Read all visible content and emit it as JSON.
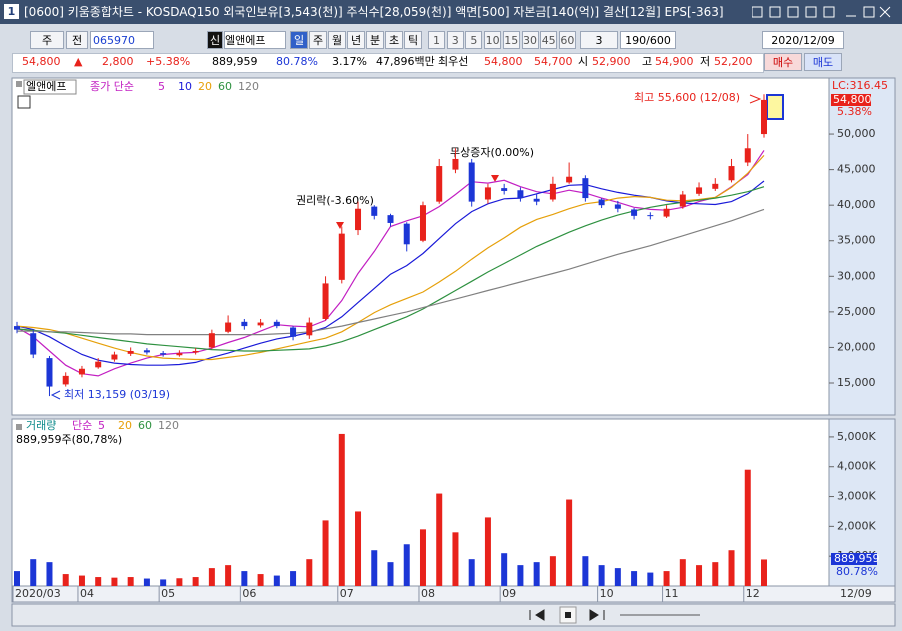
{
  "header": {
    "window_no": "1",
    "title": "[0600] 키움종합차트 - KOSDAQ150 외국인보유[3,543(천)] 주식수[28,059(천)] 액면[500] 자본금[140(억)] 결산[12월] EPS[-363]"
  },
  "toolbar": {
    "kind": "주",
    "scope": "전",
    "code": "065970",
    "credit": "신",
    "name": "엘앤에프",
    "periods": [
      "일",
      "주",
      "월",
      "년",
      "분",
      "초",
      "틱"
    ],
    "intervals": [
      "1",
      "3",
      "5",
      "10",
      "15",
      "30",
      "45",
      "60"
    ],
    "unit": "3",
    "count": "190/600",
    "date": "2020/12/09"
  },
  "info": {
    "price": "54,800",
    "arrow": "▲",
    "change": "2,800",
    "rate": "+5.38%",
    "volume": "889,959",
    "vol_rate": "80.78%",
    "turnover": "3.17%",
    "amount": "47,896백만",
    "best_label": "최우선",
    "ask": "54,800",
    "bid": "54,700",
    "open_label": "시",
    "open": "52,900",
    "high_label": "고",
    "high": "54,900",
    "low_label": "저",
    "low": "52,200",
    "buy": "매수",
    "sell": "매도"
  },
  "chart_data": [
    {
      "type": "candlestick",
      "legend_name": "엘앤에프",
      "ma_label": "종가 단순",
      "up_color": "#e8221b",
      "down_color": "#1c36d6",
      "categories": [
        "2020/03",
        null,
        null,
        null,
        "04",
        null,
        null,
        null,
        null,
        "05",
        null,
        null,
        null,
        null,
        "06",
        null,
        null,
        null,
        null,
        null,
        "07",
        null,
        null,
        null,
        null,
        "08",
        null,
        null,
        null,
        null,
        "09",
        null,
        null,
        null,
        null,
        null,
        "10",
        null,
        null,
        null,
        "11",
        null,
        null,
        null,
        null,
        "12",
        null
      ],
      "x_end_label": "12/09",
      "open": [
        23000,
        22000,
        18500,
        14800,
        16200,
        17200,
        18300,
        19100,
        19600,
        19200,
        18900,
        19300,
        20000,
        22200,
        23600,
        23100,
        23600,
        22800,
        21700,
        24000,
        29500,
        36500,
        39800,
        38600,
        37400,
        35000,
        40500,
        45000,
        46000,
        40800,
        42400,
        42100,
        40900,
        40800,
        43200,
        43800,
        40800,
        40100,
        39400,
        38600,
        38400,
        39800,
        41600,
        42300,
        43500,
        46000,
        50000
      ],
      "high": [
        23600,
        22400,
        18800,
        16500,
        17400,
        18500,
        19400,
        20000,
        19900,
        19500,
        19600,
        19900,
        22500,
        24500,
        24000,
        24000,
        23900,
        23000,
        24200,
        30000,
        37000,
        40500,
        40000,
        38800,
        37600,
        40500,
        46500,
        48000,
        46500,
        43000,
        43000,
        42500,
        41500,
        44000,
        46000,
        44200,
        41000,
        40600,
        39600,
        39000,
        40000,
        42000,
        43200,
        43800,
        46500,
        50000,
        55600
      ],
      "low": [
        22000,
        18500,
        13159,
        14500,
        15800,
        17000,
        18000,
        18800,
        19000,
        18700,
        18700,
        19000,
        19800,
        22000,
        22500,
        22800,
        22700,
        21000,
        21200,
        23800,
        29000,
        35800,
        38000,
        37000,
        33500,
        34800,
        40200,
        44500,
        39800,
        40200,
        41500,
        40500,
        40000,
        40500,
        43000,
        40500,
        39600,
        39000,
        38000,
        38000,
        38200,
        39500,
        41300,
        42000,
        43200,
        45500,
        49500
      ],
      "close": [
        22500,
        19000,
        14500,
        16000,
        17000,
        18000,
        19000,
        19500,
        19300,
        19000,
        19200,
        19500,
        22000,
        23500,
        23000,
        23500,
        23000,
        21500,
        23500,
        29000,
        36000,
        39500,
        38500,
        37500,
        34500,
        40000,
        45500,
        46500,
        40500,
        42500,
        42000,
        41000,
        40500,
        43000,
        44000,
        41000,
        40000,
        39500,
        38500,
        38500,
        39500,
        41500,
        42500,
        43000,
        45500,
        48000,
        54800
      ],
      "series": [
        {
          "name": "5",
          "color": "#c21fc2",
          "values": [
            22800,
            21500,
            19500,
            17500,
            16300,
            16000,
            17000,
            17800,
            18500,
            19000,
            19200,
            19300,
            19900,
            20700,
            21400,
            22300,
            23200,
            23000,
            22900,
            23800,
            26600,
            30400,
            33500,
            37000,
            37800,
            38500,
            39800,
            41500,
            43300,
            43100,
            43500,
            42600,
            41900,
            41600,
            42100,
            41700,
            41000,
            40400,
            39700,
            39400,
            39300,
            39700,
            40500,
            41100,
            42600,
            44300,
            47700
          ]
        },
        {
          "name": "10",
          "color": "#1a1ad8",
          "values": [
            23000,
            22500,
            21500,
            20200,
            19000,
            18200,
            17800,
            17600,
            17500,
            17500,
            17600,
            17900,
            18600,
            19200,
            19900,
            20600,
            21200,
            21600,
            22100,
            22800,
            24300,
            26300,
            28300,
            30300,
            31500,
            33200,
            35300,
            37400,
            39100,
            40200,
            40900,
            41000,
            41600,
            42200,
            42800,
            42900,
            42300,
            41800,
            41400,
            41100,
            40600,
            40300,
            40200,
            40100,
            40500,
            41600,
            43400
          ]
        },
        {
          "name": "20",
          "color": "#e6a00a",
          "values": [
            23000,
            22800,
            22500,
            22000,
            21300,
            20600,
            19900,
            19300,
            18800,
            18500,
            18400,
            18300,
            18300,
            18600,
            18900,
            19300,
            19800,
            20300,
            20800,
            21300,
            22200,
            23500,
            24900,
            26000,
            26900,
            27800,
            29200,
            30700,
            32400,
            34000,
            35400,
            36900,
            38000,
            38700,
            39500,
            40200,
            40500,
            41000,
            41200,
            41100,
            40700,
            40600,
            40800,
            41100,
            42500,
            44500,
            47000
          ]
        },
        {
          "name": "60",
          "color": "#2e9140",
          "values": [
            22600,
            22400,
            22200,
            22000,
            21700,
            21400,
            21100,
            20800,
            20500,
            20300,
            20100,
            19900,
            19700,
            19600,
            19500,
            19500,
            19600,
            19700,
            19800,
            20200,
            20800,
            21600,
            22500,
            23400,
            24300,
            25400,
            26700,
            28000,
            29300,
            30600,
            31800,
            33000,
            34200,
            35200,
            36200,
            37100,
            37900,
            38600,
            39200,
            39700,
            40100,
            40400,
            40700,
            41000,
            41400,
            41900,
            42600
          ]
        },
        {
          "name": "120",
          "color": "#808080",
          "values": [
            22300,
            22300,
            22200,
            22200,
            22100,
            22000,
            21900,
            21900,
            21800,
            21800,
            21800,
            21800,
            21800,
            21800,
            21800,
            21800,
            21900,
            22000,
            22200,
            22600,
            23000,
            23500,
            24000,
            24500,
            25000,
            25600,
            26200,
            26800,
            27400,
            28000,
            28600,
            29200,
            29800,
            30400,
            31000,
            31700,
            32400,
            33100,
            33700,
            34300,
            35000,
            35700,
            36400,
            37100,
            37800,
            38600,
            39400
          ]
        }
      ],
      "ylim": [
        10500,
        57600
      ],
      "yticks": [
        {
          "value": 15000,
          "label": "15,000"
        },
        {
          "value": 20000,
          "label": "20,000"
        },
        {
          "value": 25000,
          "label": "25,000"
        },
        {
          "value": 30000,
          "label": "30,000"
        },
        {
          "value": 35000,
          "label": "35,000"
        },
        {
          "value": 40000,
          "label": "40,000"
        },
        {
          "value": 45000,
          "label": "45,000"
        },
        {
          "value": 50000,
          "label": "50,000"
        }
      ],
      "right_labels": {
        "lc": "LC:316.45",
        "price": "54,800",
        "rate": "5.38%"
      },
      "annotations": {
        "high": "최고 55,600 (12/08)",
        "low": "최저 13,159 (03/19)",
        "bonus": "무상증자(0.00%)",
        "rights": "권리락(-3.60%)"
      }
    },
    {
      "type": "bar",
      "legend_name": "거래량",
      "ma_label": "단순",
      "legend": [
        {
          "name": "5",
          "color": "#c21fc2"
        },
        {
          "name": "20",
          "color": "#e6a00a"
        },
        {
          "name": "60",
          "color": "#2e9140"
        },
        {
          "name": "120",
          "color": "#808080"
        }
      ],
      "subtitle": "889,959주(80,78%)",
      "values": [
        500000,
        900000,
        800000,
        400000,
        350000,
        300000,
        280000,
        300000,
        250000,
        220000,
        260000,
        300000,
        600000,
        700000,
        500000,
        400000,
        350000,
        500000,
        900000,
        2200000,
        5100000,
        2500000,
        1200000,
        800000,
        1400000,
        1900000,
        3100000,
        1800000,
        900000,
        2300000,
        1100000,
        700000,
        800000,
        1000000,
        2900000,
        1000000,
        700000,
        600000,
        500000,
        450000,
        500000,
        900000,
        700000,
        800000,
        1200000,
        3900000,
        889959
      ],
      "ylim": [
        0,
        5500000
      ],
      "yticks": [
        {
          "value": 1000000,
          "label": "1,000K"
        },
        {
          "value": 2000000,
          "label": "2,000K"
        },
        {
          "value": 3000000,
          "label": "3,000K"
        },
        {
          "value": 4000000,
          "label": "4,000K"
        },
        {
          "value": 5000000,
          "label": "5,000K"
        }
      ],
      "right_labels": {
        "volume": "889,959",
        "rate": "80.78%"
      }
    }
  ]
}
